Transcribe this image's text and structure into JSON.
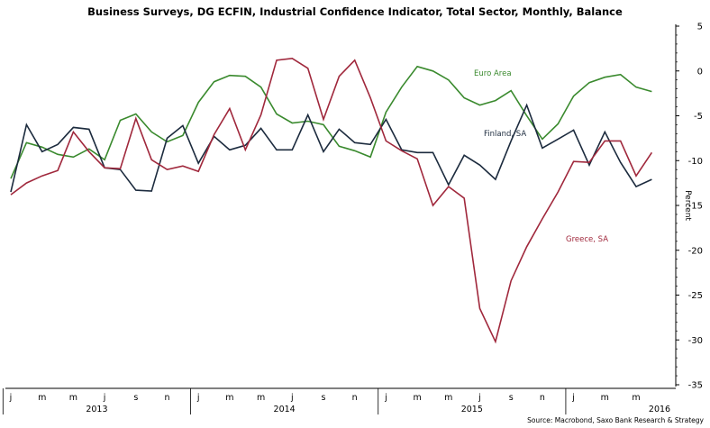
{
  "chart_data": {
    "type": "line",
    "title": "Business Surveys, DG ECFIN, Industrial Confidence Indicator, Total Sector, Monthly, Balance",
    "ylabel": "Percent",
    "ylim": [
      -35,
      5
    ],
    "yticks": [
      5,
      0,
      -5,
      -10,
      -15,
      -20,
      -25,
      -30,
      -35
    ],
    "month_labels": [
      "j",
      "m",
      "m",
      "j",
      "s",
      "n",
      "j",
      "m",
      "m",
      "j",
      "s",
      "n",
      "j",
      "m",
      "m",
      "j",
      "s",
      "n",
      "j",
      "m",
      "m"
    ],
    "year_labels": [
      "2013",
      "2014",
      "2015",
      "2016"
    ],
    "source": "Source: Macrobond, Saxo Bank Research & Strategy",
    "grid": false,
    "x_start": "2013-01",
    "series": [
      {
        "name": "Euro Area",
        "color": "#3a8a2e",
        "values": [
          -12,
          -8,
          -8.5,
          -9.3,
          -9.6,
          -8.7,
          -9.9,
          -5.5,
          -4.8,
          -6.8,
          -7.9,
          -7.2,
          -3.5,
          -1.2,
          -0.5,
          -0.6,
          -1.8,
          -4.8,
          -5.8,
          -5.6,
          -6,
          -8.4,
          -8.9,
          -9.6,
          -4.6,
          -1.8,
          0.5,
          0,
          -1,
          -3,
          -3.8,
          -3.3,
          -2.2,
          -5,
          -7.6,
          -5.9,
          -2.8,
          -1.3,
          -0.7,
          -0.4,
          -1.8,
          -2.3
        ]
      },
      {
        "name": "Finland, SA",
        "color": "#1c2b3e",
        "values": [
          -13.5,
          -6,
          -9,
          -8.2,
          -6.3,
          -6.5,
          -10.8,
          -11,
          -13.3,
          -13.4,
          -7.5,
          -6.1,
          -10.3,
          -7.3,
          -8.8,
          -8.3,
          -6.4,
          -8.8,
          -8.8,
          -4.9,
          -9,
          -6.5,
          -8,
          -8.2,
          -5.4,
          -8.8,
          -9.1,
          -9.1,
          -12.7,
          -9.4,
          -10.5,
          -12.1,
          -7.8,
          -3.8,
          -8.6,
          -7.6,
          -6.6,
          -10.5,
          -6.8,
          -10.2,
          -12.9,
          -12.1
        ]
      },
      {
        "name": "Greece, SA",
        "color": "#a0283c",
        "values": [
          -13.8,
          -12.5,
          -11.7,
          -11.1,
          -6.8,
          -9,
          -10.8,
          -10.9,
          -5.3,
          -9.9,
          -11,
          -10.6,
          -11.2,
          -7.1,
          -4.2,
          -8.8,
          -4.9,
          1.2,
          1.4,
          0.3,
          -5.4,
          -0.6,
          1.2,
          -3,
          -7.8,
          -8.9,
          -9.8,
          -15,
          -12.9,
          -14.2,
          -26.5,
          -30.2,
          -23.4,
          -19.6,
          -16.5,
          -13.5,
          -10.1,
          -10.2,
          -7.8,
          -7.8,
          -11.7,
          -9.1
        ]
      }
    ],
    "label_positions_note": "",
    "series_labels": [
      "Euro Area",
      "Finland, SA",
      "Greece, SA"
    ]
  }
}
